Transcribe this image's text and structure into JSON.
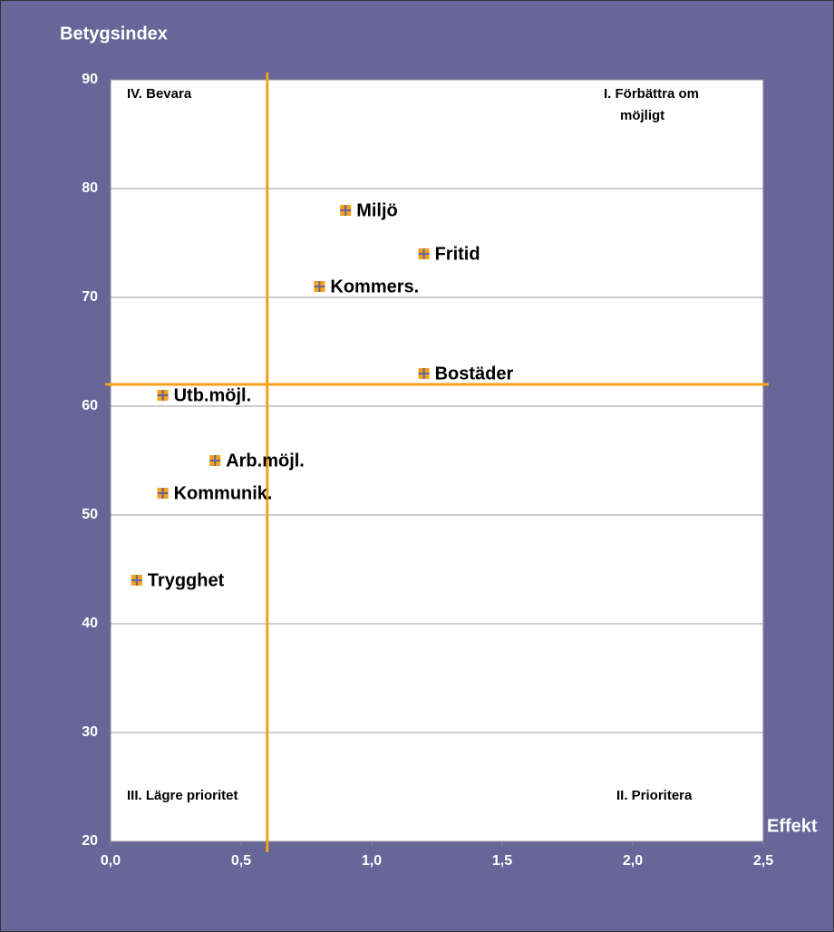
{
  "chart_data": {
    "type": "scatter",
    "y_label": "Betygsindex",
    "x_label": "Effekt",
    "x": [
      0.9,
      1.2,
      0.8,
      1.2,
      0.2,
      0.4,
      0.2,
      0.1
    ],
    "values": [
      78,
      74,
      71,
      63,
      61,
      55,
      52,
      44
    ],
    "labels": [
      "Miljö",
      "Fritid",
      "Kommers.",
      "Bostäder",
      "Utb.möjl.",
      "Arb.möjl.",
      "Kommunik.",
      "Trygghet"
    ],
    "color": "#f5a01a",
    "xlim": [
      0,
      2.5
    ],
    "ylim": [
      20,
      90
    ],
    "xticks": [
      {
        "value": 0,
        "label": "0,0"
      },
      {
        "value": 0.5,
        "label": "0,5"
      },
      {
        "value": 1,
        "label": "1,0"
      },
      {
        "value": 1.5,
        "label": "1,5"
      },
      {
        "value": 2,
        "label": "2,0"
      },
      {
        "value": 2.5,
        "label": "2,5"
      }
    ],
    "yticks": [
      20,
      30,
      40,
      50,
      60,
      70,
      80,
      90
    ],
    "grid": true,
    "reference_lines": {
      "x": 0.6,
      "y": 62,
      "color": "#f5a01a"
    },
    "quadrant_labels": [
      "IV. Bevara",
      "I. Förbättra om",
      "möjligt",
      "III. Lägre prioritet",
      "II. Prioritera"
    ]
  }
}
